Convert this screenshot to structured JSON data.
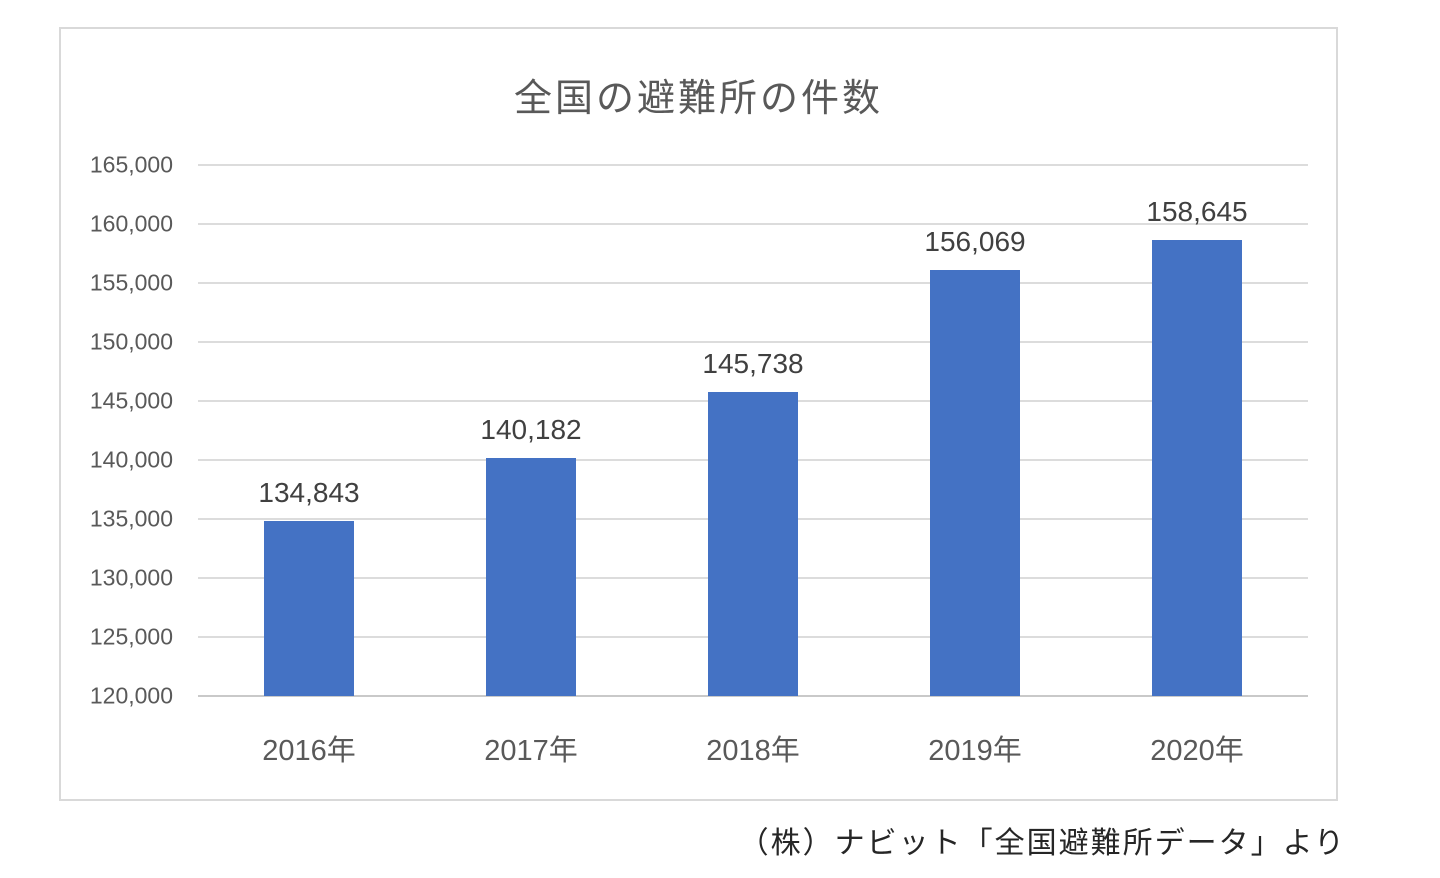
{
  "chart_data": {
    "type": "bar",
    "title": "全国の避難所の件数",
    "categories": [
      "2016年",
      "2017年",
      "2018年",
      "2019年",
      "2020年"
    ],
    "values": [
      134843,
      140182,
      145738,
      156069,
      158645
    ],
    "data_labels": [
      "134,843",
      "140,182",
      "145,738",
      "156,069",
      "158,645"
    ],
    "ylim": [
      120000,
      165000
    ],
    "ytick_step": 5000,
    "ytick_labels": [
      "120,000",
      "125,000",
      "130,000",
      "135,000",
      "140,000",
      "145,000",
      "150,000",
      "155,000",
      "160,000",
      "165,000"
    ],
    "xlabel": "",
    "ylabel": "",
    "grid": true,
    "legend_position": "none",
    "bar_color": "#4472C4",
    "gridline_color": "#DCDCDC",
    "source_note": "（株）ナビット「全国避難所データ」より"
  }
}
